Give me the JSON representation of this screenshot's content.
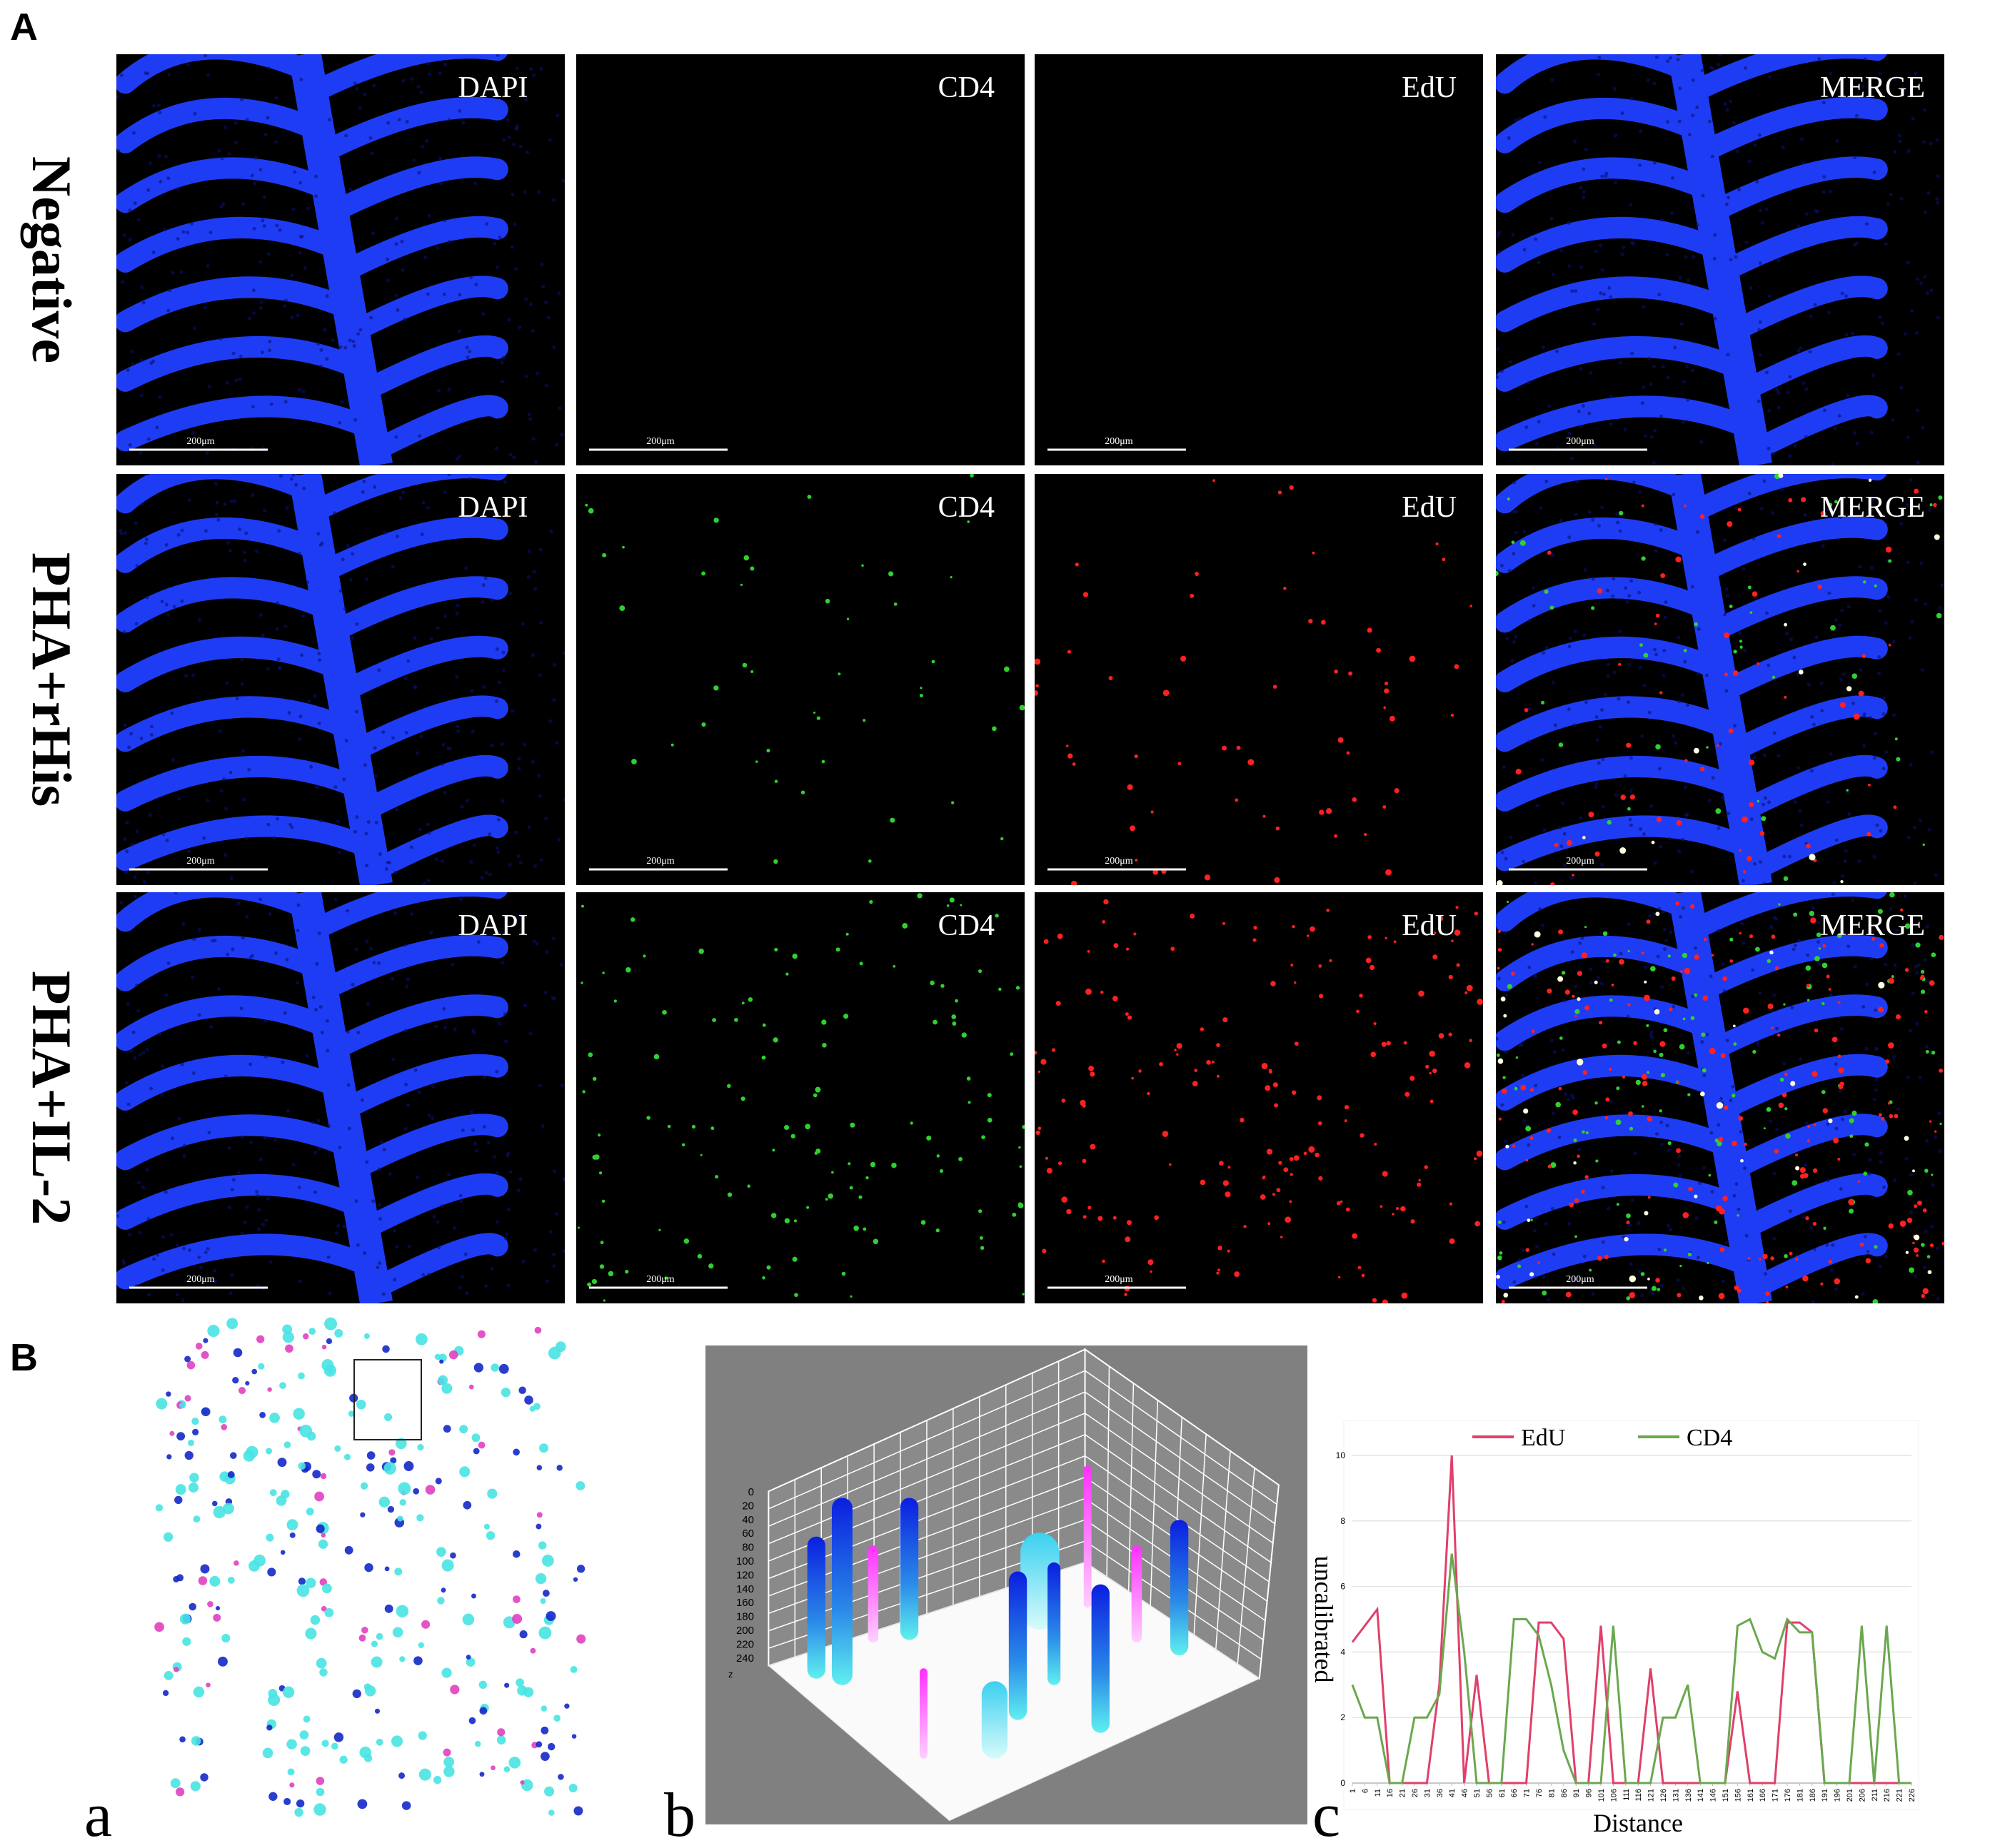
{
  "panel_a": {
    "label": "A",
    "rows": [
      "Negative",
      "PHA+rHis",
      "PHA+IL-2"
    ],
    "channels": [
      "DAPI",
      "CD4",
      "EdU",
      "MERGE"
    ],
    "scale_bar": "200μm"
  },
  "panel_b": {
    "label": "B",
    "subpanels": [
      "a",
      "b",
      "c"
    ],
    "z_axis_labels": [
      0,
      20,
      40,
      60,
      80,
      100,
      120,
      140,
      160,
      180,
      200,
      220,
      240
    ],
    "z_axis_name": "z"
  },
  "chart_data": {
    "type": "line",
    "x_label": "Distance",
    "y_label": "uncalibrated",
    "x": [
      1,
      6,
      11,
      16,
      21,
      26,
      31,
      36,
      41,
      46,
      51,
      56,
      61,
      66,
      71,
      76,
      81,
      86,
      91,
      96,
      101,
      106,
      111,
      116,
      121,
      126,
      131,
      136,
      141,
      146,
      151,
      156,
      161,
      166,
      171,
      176,
      181,
      186,
      191,
      196,
      201,
      206,
      211,
      216,
      221,
      226
    ],
    "series": [
      {
        "name": "EdU",
        "color": "#e0406a",
        "values": [
          4.3,
          4.8,
          5.3,
          0,
          0,
          0,
          0,
          3,
          10,
          0,
          3.3,
          0,
          0,
          0,
          0,
          4.9,
          4.9,
          4.4,
          0,
          0,
          4.8,
          0,
          0,
          0,
          3.5,
          0,
          0,
          0,
          0,
          0,
          0,
          2.8,
          0,
          0,
          0,
          4.9,
          4.9,
          4.6,
          0,
          0,
          0,
          0,
          0,
          0,
          0,
          0
        ]
      },
      {
        "name": "CD4",
        "color": "#6aa84f",
        "values": [
          3,
          2,
          2,
          0,
          0,
          2,
          2,
          2.7,
          7,
          4,
          0,
          0,
          0,
          5,
          5,
          4.5,
          3,
          1,
          0,
          0,
          0,
          4.8,
          0,
          0,
          0,
          2,
          2,
          3,
          0,
          0,
          0,
          4.8,
          5,
          4,
          3.8,
          5,
          4.6,
          4.6,
          0,
          0,
          0,
          4.8,
          0,
          4.8,
          0,
          0
        ]
      }
    ],
    "xlim": [
      1,
      226
    ],
    "ylim": [
      0,
      10
    ],
    "xticks": [
      1,
      6,
      11,
      16,
      21,
      26,
      31,
      36,
      41,
      46,
      51,
      56,
      61,
      66,
      71,
      76,
      81,
      86,
      91,
      96,
      101,
      106,
      111,
      116,
      121,
      126,
      131,
      136,
      141,
      146,
      151,
      156,
      161,
      166,
      171,
      176,
      181,
      186,
      191,
      196,
      201,
      206,
      211,
      216,
      221,
      226
    ],
    "yticks": [
      0,
      2,
      4,
      6,
      8,
      10
    ],
    "grid": true
  }
}
